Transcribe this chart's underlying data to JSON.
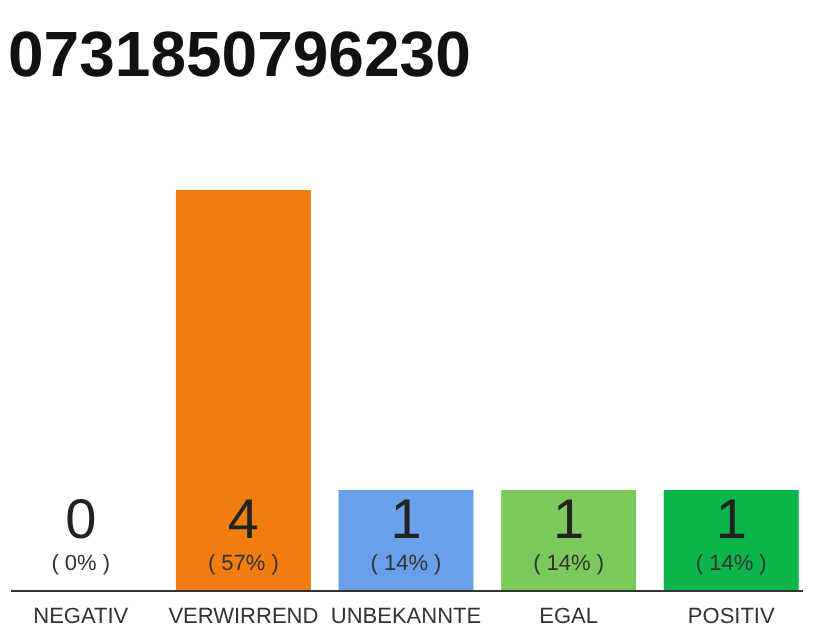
{
  "chart_data": {
    "type": "bar",
    "title": "0731850796230",
    "categories": [
      "NEGATIV",
      "VERWIRREND",
      "UNBEKANNTE",
      "EGAL",
      "POSITIV"
    ],
    "values": [
      0,
      4,
      1,
      1,
      1
    ],
    "colors": [
      "#d9534f",
      "#f07d0d",
      "#6aa0ea",
      "#7cc95c",
      "#0ab54a"
    ],
    "tick_labels": "x",
    "data_labels": true,
    "annotations": [
      {
        "text": "( 0% )",
        "x": "NEGATIV",
        "y": 0
      },
      {
        "text": "( 57% )",
        "x": "VERWIRREND",
        "y": 0
      },
      {
        "text": "( 14% )",
        "x": "UNBEKANNTE",
        "y": 0
      },
      {
        "text": "( 14% )",
        "x": "EGAL",
        "y": 0
      },
      {
        "text": "( 14% )",
        "x": "POSITIV",
        "y": 0
      }
    ]
  }
}
